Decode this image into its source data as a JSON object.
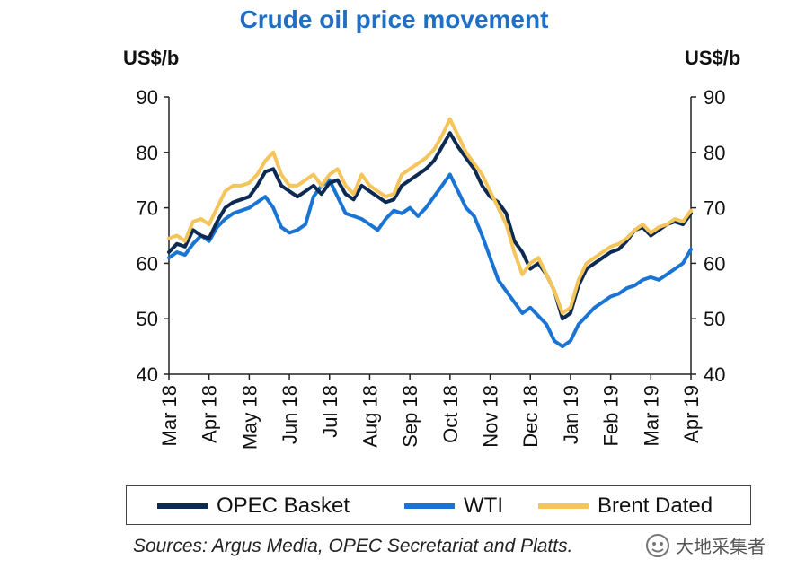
{
  "title": "Crude oil price movement",
  "unit_left": "US$/b",
  "unit_right": "US$/b",
  "source": "Sources: Argus Media, OPEC Secretariat and Platts.",
  "watermark": "大地采集者",
  "chart_data": {
    "type": "line",
    "ylim": [
      40,
      90
    ],
    "yticks": [
      40,
      50,
      60,
      70,
      80,
      90
    ],
    "x_labels": [
      "Mar 18",
      "Apr 18",
      "May 18",
      "Jun 18",
      "Jul 18",
      "Aug 18",
      "Sep 18",
      "Oct 18",
      "Nov 18",
      "Dec 18",
      "Jan 19",
      "Feb 19",
      "Mar 19",
      "Apr 19"
    ],
    "x_range": [
      0,
      13
    ],
    "grid": false,
    "legend_position": "bottom",
    "series": [
      {
        "name": "OPEC Basket",
        "color": "#0d2b52",
        "x": [
          0,
          0.2,
          0.4,
          0.6,
          0.8,
          1,
          1.2,
          1.4,
          1.6,
          1.8,
          2,
          2.2,
          2.4,
          2.6,
          2.8,
          3,
          3.2,
          3.4,
          3.6,
          3.8,
          4,
          4.2,
          4.4,
          4.6,
          4.8,
          5,
          5.2,
          5.4,
          5.6,
          5.8,
          6,
          6.2,
          6.4,
          6.6,
          6.8,
          7,
          7.2,
          7.4,
          7.6,
          7.8,
          8,
          8.2,
          8.4,
          8.6,
          8.8,
          9,
          9.2,
          9.4,
          9.6,
          9.8,
          10,
          10.2,
          10.4,
          10.6,
          10.8,
          11,
          11.2,
          11.4,
          11.6,
          11.8,
          12,
          12.2,
          12.4,
          12.6,
          12.8,
          13
        ],
        "values": [
          62,
          63.5,
          63,
          66,
          65,
          64.5,
          67.5,
          70,
          71,
          71.5,
          72,
          74,
          76.5,
          77,
          74,
          73,
          72,
          73,
          74,
          72.5,
          74.5,
          75,
          72.5,
          71.5,
          74,
          73,
          72,
          71,
          71.5,
          74,
          75,
          76,
          77,
          78.5,
          81,
          83.5,
          81,
          79,
          77,
          74,
          72,
          71,
          69,
          64,
          62,
          59,
          60,
          58,
          55,
          50,
          51,
          56,
          59,
          60,
          61,
          62,
          62.5,
          64,
          66,
          66.5,
          65,
          66,
          67,
          67.5,
          67,
          69
        ]
      },
      {
        "name": "WTI",
        "color": "#1a74d4",
        "x": [
          0,
          0.2,
          0.4,
          0.6,
          0.8,
          1,
          1.2,
          1.4,
          1.6,
          1.8,
          2,
          2.2,
          2.4,
          2.6,
          2.8,
          3,
          3.2,
          3.4,
          3.6,
          3.8,
          4,
          4.2,
          4.4,
          4.6,
          4.8,
          5,
          5.2,
          5.4,
          5.6,
          5.8,
          6,
          6.2,
          6.4,
          6.6,
          6.8,
          7,
          7.2,
          7.4,
          7.6,
          7.8,
          8,
          8.2,
          8.4,
          8.6,
          8.8,
          9,
          9.2,
          9.4,
          9.6,
          9.8,
          10,
          10.2,
          10.4,
          10.6,
          10.8,
          11,
          11.2,
          11.4,
          11.6,
          11.8,
          12,
          12.2,
          12.4,
          12.6,
          12.8,
          13
        ],
        "values": [
          61,
          62,
          61.5,
          63.5,
          65,
          64,
          66.5,
          68,
          69,
          69.5,
          70,
          71,
          72,
          70,
          66.5,
          65.5,
          66,
          67,
          72,
          74,
          75,
          72,
          69,
          68.5,
          68,
          67,
          66,
          68,
          69.5,
          69,
          70,
          68.5,
          70,
          72,
          74,
          76,
          73,
          70,
          68.5,
          65,
          61,
          57,
          55,
          53,
          51,
          52,
          50.5,
          49,
          46,
          45,
          46,
          49,
          50.5,
          52,
          53,
          54,
          54.5,
          55.5,
          56,
          57,
          57.5,
          57,
          58,
          59,
          60,
          62.5
        ]
      },
      {
        "name": "Brent Dated",
        "color": "#f5c55b",
        "x": [
          0,
          0.2,
          0.4,
          0.6,
          0.8,
          1,
          1.2,
          1.4,
          1.6,
          1.8,
          2,
          2.2,
          2.4,
          2.6,
          2.8,
          3,
          3.2,
          3.4,
          3.6,
          3.8,
          4,
          4.2,
          4.4,
          4.6,
          4.8,
          5,
          5.2,
          5.4,
          5.6,
          5.8,
          6,
          6.2,
          6.4,
          6.6,
          6.8,
          7,
          7.2,
          7.4,
          7.6,
          7.8,
          8,
          8.2,
          8.4,
          8.6,
          8.8,
          9,
          9.2,
          9.4,
          9.6,
          9.8,
          10,
          10.2,
          10.4,
          10.6,
          10.8,
          11,
          11.2,
          11.4,
          11.6,
          11.8,
          12,
          12.2,
          12.4,
          12.6,
          12.8,
          13
        ],
        "values": [
          64.5,
          65,
          64,
          67.5,
          68,
          67,
          70,
          73,
          74,
          74,
          74.5,
          76,
          78.5,
          80,
          76,
          74,
          74,
          75,
          76,
          74,
          76,
          77,
          74,
          72.5,
          76,
          74,
          73,
          72,
          72.5,
          76,
          77,
          78,
          79,
          80.5,
          83,
          86,
          83,
          80,
          78,
          76,
          73,
          70,
          67,
          62,
          58,
          60,
          61,
          58,
          55,
          51,
          52,
          57,
          60,
          61,
          62,
          63,
          63.5,
          64.5,
          66,
          67,
          65.5,
          66.5,
          67,
          68,
          67.5,
          69.5
        ]
      }
    ]
  }
}
